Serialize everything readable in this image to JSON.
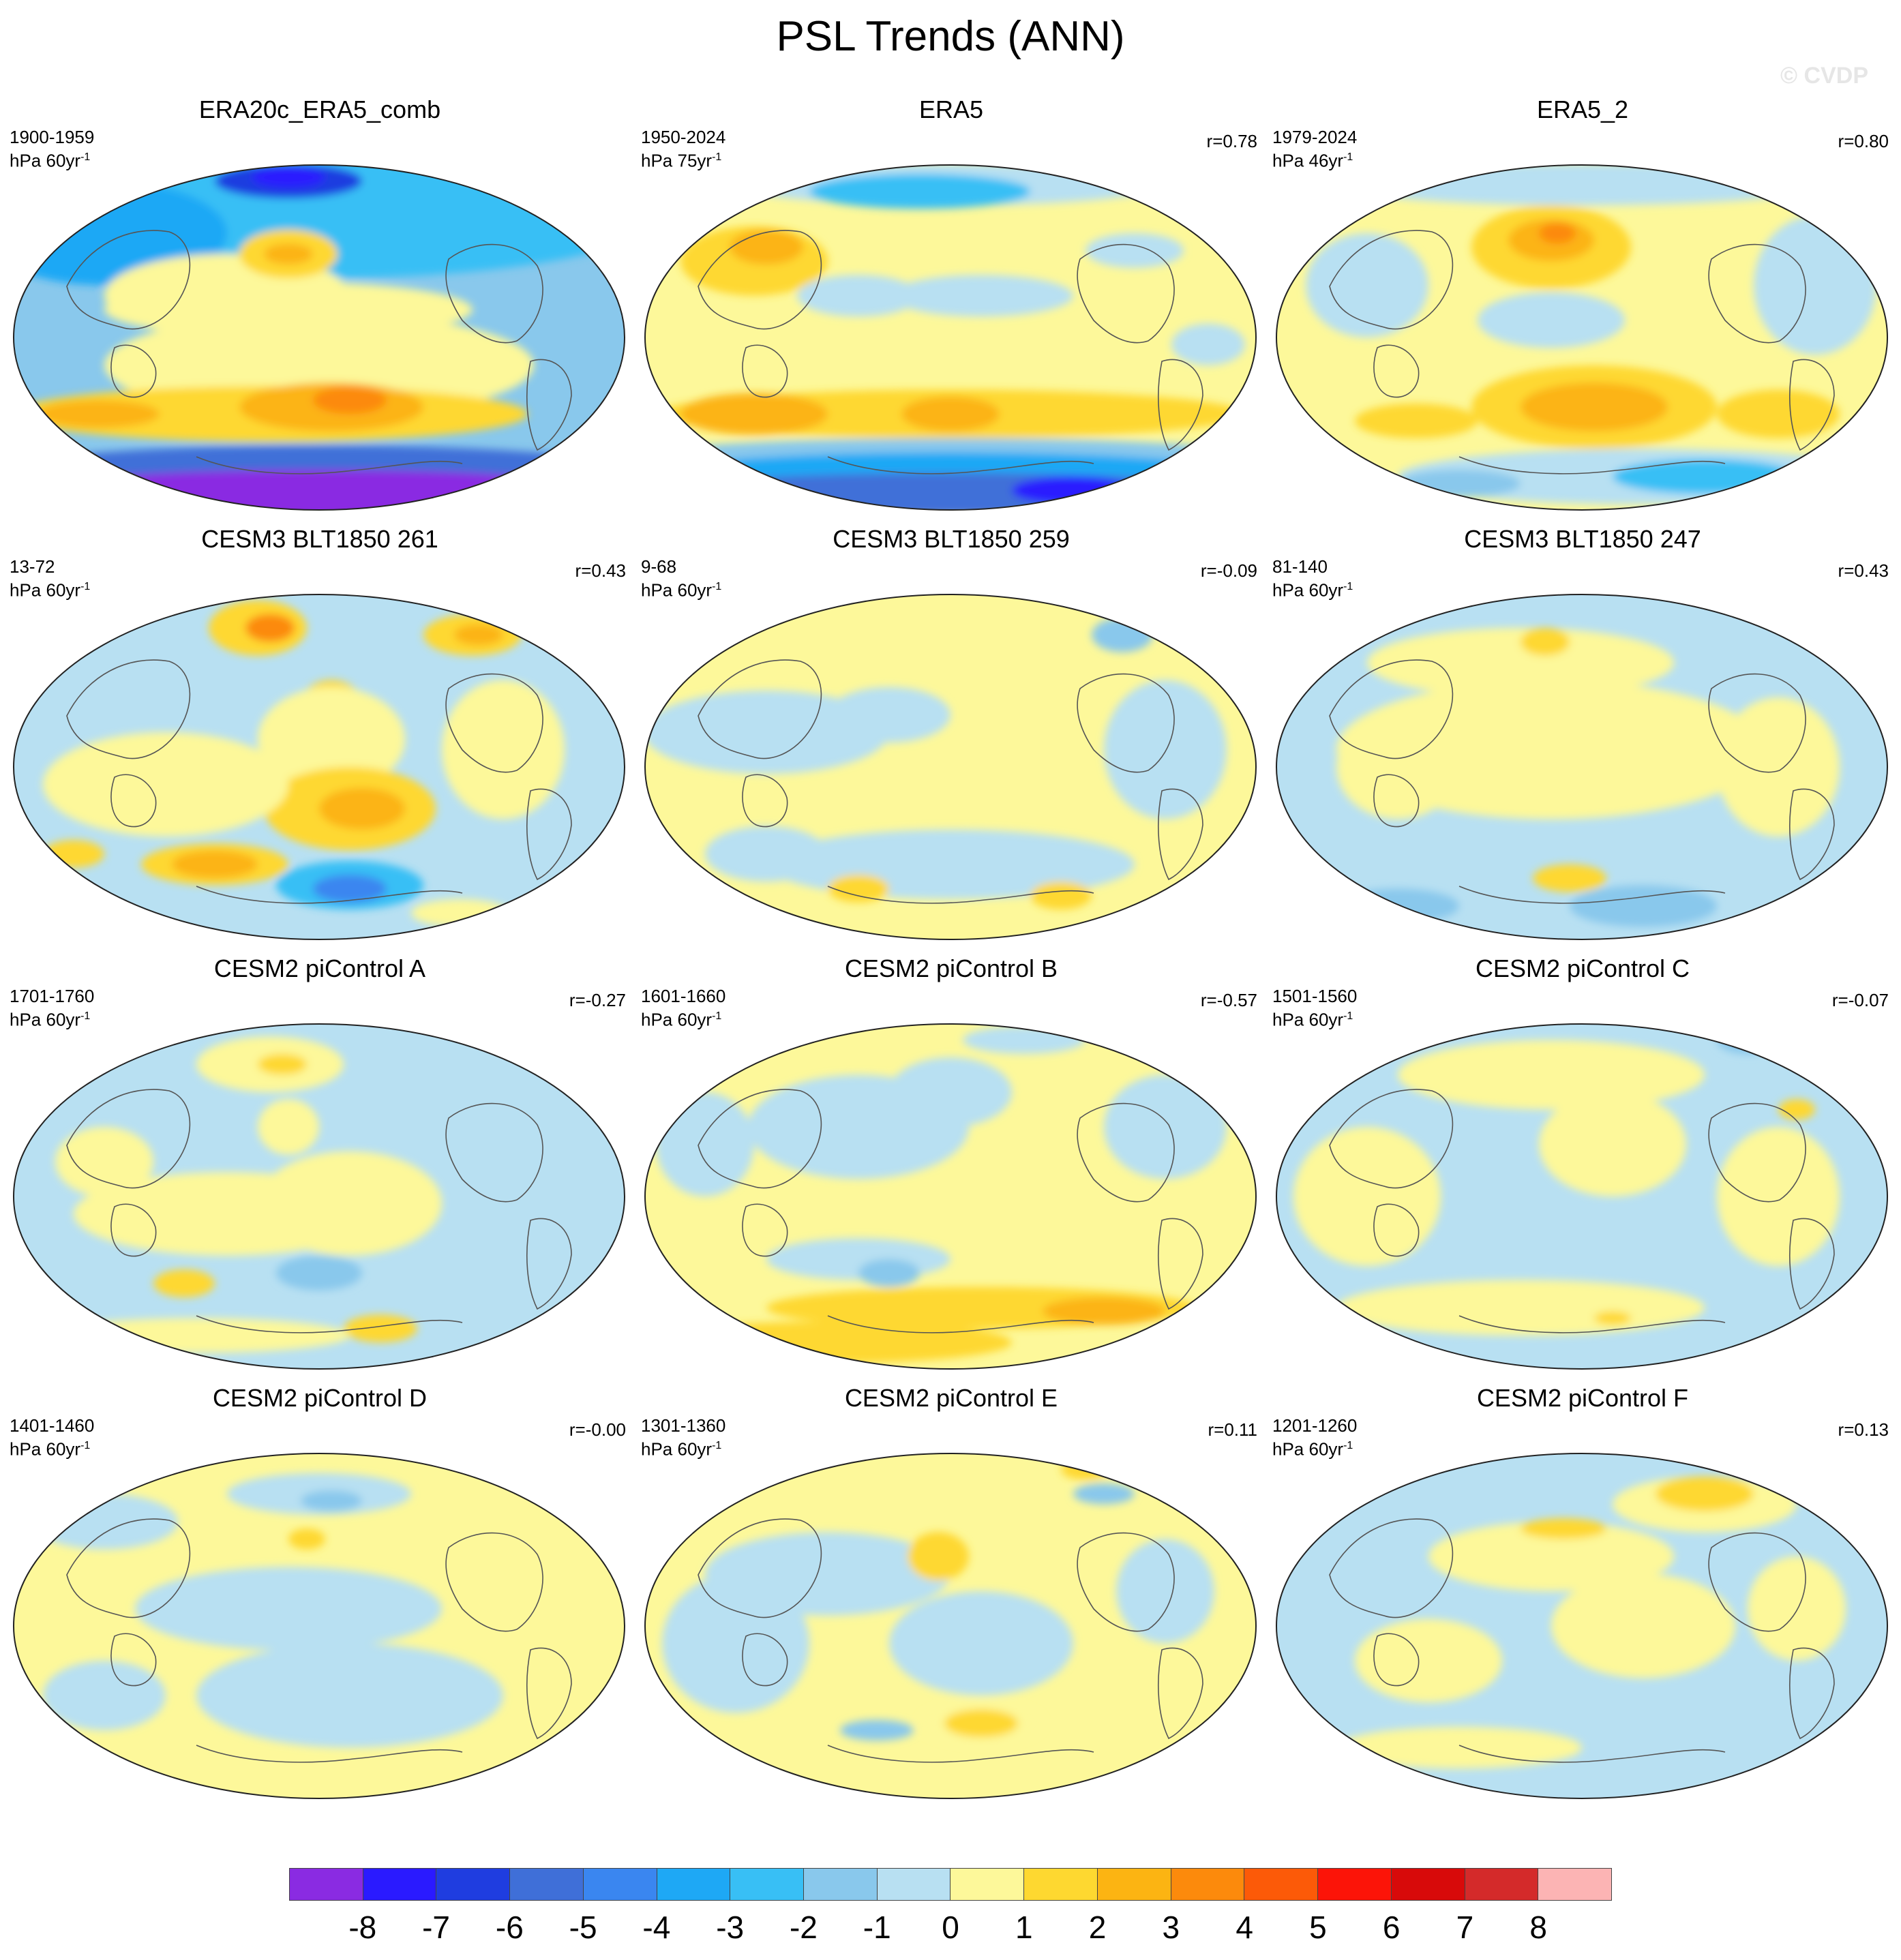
{
  "title": "PSL Trends (ANN)",
  "watermark": "© CVDP",
  "panels": [
    {
      "title": "ERA20c_ERA5_comb",
      "period": "1900-1959",
      "units": "hPa 60yr",
      "units_exp": "-1",
      "r": "",
      "pattern": "era20c"
    },
    {
      "title": "ERA5",
      "period": "1950-2024",
      "units": "hPa 75yr",
      "units_exp": "-1",
      "r": "r=0.78",
      "pattern": "era5"
    },
    {
      "title": "ERA5_2",
      "period": "1979-2024",
      "units": "hPa 46yr",
      "units_exp": "-1",
      "r": "r=0.80",
      "pattern": "era5b"
    },
    {
      "title": "CESM3 BLT1850 261",
      "period": "13-72",
      "units": "hPa 60yr",
      "units_exp": "-1",
      "r": "r=0.43",
      "pattern": "m261"
    },
    {
      "title": "CESM3 BLT1850 259",
      "period": "9-68",
      "units": "hPa 60yr",
      "units_exp": "-1",
      "r": "r=-0.09",
      "pattern": "m259"
    },
    {
      "title": "CESM3 BLT1850 247",
      "period": "81-140",
      "units": "hPa 60yr",
      "units_exp": "-1",
      "r": "r=0.43",
      "pattern": "m247"
    },
    {
      "title": "CESM2 piControl A",
      "period": "1701-1760",
      "units": "hPa 60yr",
      "units_exp": "-1",
      "r": "r=-0.27",
      "pattern": "pA"
    },
    {
      "title": "CESM2 piControl B",
      "period": "1601-1660",
      "units": "hPa 60yr",
      "units_exp": "-1",
      "r": "r=-0.57",
      "pattern": "pB"
    },
    {
      "title": "CESM2 piControl C",
      "period": "1501-1560",
      "units": "hPa 60yr",
      "units_exp": "-1",
      "r": "r=-0.07",
      "pattern": "pC"
    },
    {
      "title": "CESM2 piControl D",
      "period": "1401-1460",
      "units": "hPa 60yr",
      "units_exp": "-1",
      "r": "r=-0.00",
      "pattern": "pD"
    },
    {
      "title": "CESM2 piControl E",
      "period": "1301-1360",
      "units": "hPa 60yr",
      "units_exp": "-1",
      "r": "r=0.11",
      "pattern": "pE"
    },
    {
      "title": "CESM2 piControl F",
      "period": "1201-1260",
      "units": "hPa 60yr",
      "units_exp": "-1",
      "r": "r=0.13",
      "pattern": "pF"
    }
  ],
  "colorbar": {
    "colors": [
      "#8a2be2",
      "#2a1aff",
      "#1f3de0",
      "#3f6fd8",
      "#3a86f0",
      "#1ea8f5",
      "#38bff5",
      "#89c8ec",
      "#b8e0f2",
      "#fdf89a",
      "#fed830",
      "#fcb412",
      "#fc8a0c",
      "#fc5a08",
      "#fc1408",
      "#d80a0a",
      "#d42a2a",
      "#fcb4b4"
    ],
    "labels": [
      "-8",
      "-7",
      "-6",
      "-5",
      "-4",
      "-3",
      "-2",
      "-1",
      "0",
      "1",
      "2",
      "3",
      "4",
      "5",
      "6",
      "7",
      "8"
    ]
  }
}
